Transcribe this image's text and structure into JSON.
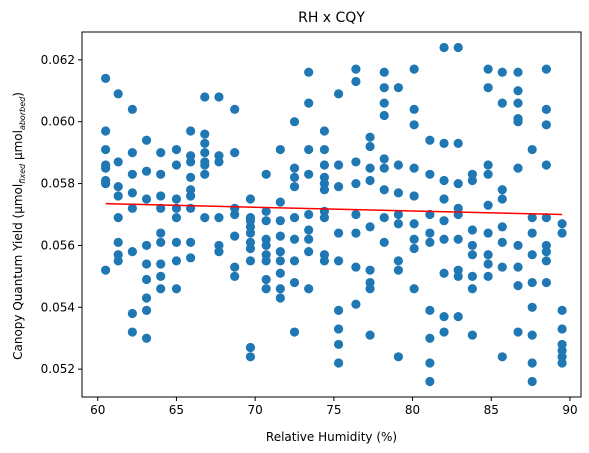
{
  "chart_data": {
    "type": "scatter",
    "title": "RH x CQY",
    "xlabel": "Relative Humidity (%)",
    "ylabel": {
      "main": "Canopy Quantum Yield (µmol",
      "sub1": "fixed",
      "mid": " µmol",
      "sub2": "aborbed",
      "end": ")"
    },
    "xlim": [
      59.0,
      90.7
    ],
    "ylim": [
      0.0511,
      0.0629
    ],
    "xticks": [
      60,
      65,
      70,
      75,
      80,
      85,
      90
    ],
    "xtick_labels": [
      "60",
      "65",
      "70",
      "75",
      "80",
      "85",
      "90"
    ],
    "yticks": [
      0.052,
      0.054,
      0.056,
      0.058,
      0.06,
      0.062
    ],
    "ytick_labels": [
      "0.052",
      "0.054",
      "0.056",
      "0.058",
      "0.060",
      "0.062"
    ],
    "grid": false,
    "legend": "none",
    "series": [
      {
        "marker_color": "#1f77b4",
        "points": [
          [
            60.5,
            0.0614
          ],
          [
            60.5,
            0.0597
          ],
          [
            60.5,
            0.0591
          ],
          [
            60.5,
            0.0586
          ],
          [
            60.5,
            0.0585
          ],
          [
            60.5,
            0.0581
          ],
          [
            60.5,
            0.058
          ],
          [
            60.5,
            0.0552
          ],
          [
            61.3,
            0.0609
          ],
          [
            61.3,
            0.0587
          ],
          [
            61.3,
            0.0579
          ],
          [
            61.3,
            0.0576
          ],
          [
            61.3,
            0.0569
          ],
          [
            61.3,
            0.0561
          ],
          [
            61.3,
            0.0557
          ],
          [
            61.3,
            0.0555
          ],
          [
            62.2,
            0.0604
          ],
          [
            62.2,
            0.059
          ],
          [
            62.2,
            0.0583
          ],
          [
            62.2,
            0.0577
          ],
          [
            62.2,
            0.0572
          ],
          [
            62.2,
            0.0558
          ],
          [
            62.2,
            0.0538
          ],
          [
            62.2,
            0.0532
          ],
          [
            63.1,
            0.0594
          ],
          [
            63.1,
            0.0584
          ],
          [
            63.1,
            0.0575
          ],
          [
            63.1,
            0.056
          ],
          [
            63.1,
            0.0554
          ],
          [
            63.1,
            0.0549
          ],
          [
            63.1,
            0.0543
          ],
          [
            63.1,
            0.0539
          ],
          [
            63.1,
            0.053
          ],
          [
            64.0,
            0.059
          ],
          [
            64.0,
            0.0583
          ],
          [
            64.0,
            0.0576
          ],
          [
            64.0,
            0.0572
          ],
          [
            64.0,
            0.0564
          ],
          [
            64.0,
            0.0561
          ],
          [
            64.0,
            0.0554
          ],
          [
            64.0,
            0.055
          ],
          [
            64.0,
            0.0546
          ],
          [
            65.0,
            0.0591
          ],
          [
            65.0,
            0.0586
          ],
          [
            65.0,
            0.0575
          ],
          [
            65.0,
            0.0572
          ],
          [
            65.0,
            0.0569
          ],
          [
            65.0,
            0.0561
          ],
          [
            65.0,
            0.0555
          ],
          [
            65.0,
            0.0546
          ],
          [
            65.9,
            0.0597
          ],
          [
            65.9,
            0.0589
          ],
          [
            65.9,
            0.0587
          ],
          [
            65.9,
            0.0582
          ],
          [
            65.9,
            0.0578
          ],
          [
            65.9,
            0.0576
          ],
          [
            65.9,
            0.0572
          ],
          [
            65.9,
            0.0561
          ],
          [
            65.9,
            0.0556
          ],
          [
            66.8,
            0.0608
          ],
          [
            66.8,
            0.0596
          ],
          [
            66.8,
            0.0593
          ],
          [
            66.8,
            0.059
          ],
          [
            66.8,
            0.0587
          ],
          [
            66.8,
            0.0586
          ],
          [
            66.8,
            0.0583
          ],
          [
            66.8,
            0.0569
          ],
          [
            67.7,
            0.0608
          ],
          [
            67.7,
            0.0589
          ],
          [
            67.7,
            0.0587
          ],
          [
            67.7,
            0.0569
          ],
          [
            67.7,
            0.056
          ],
          [
            67.7,
            0.0558
          ],
          [
            68.7,
            0.0604
          ],
          [
            68.7,
            0.059
          ],
          [
            68.7,
            0.0572
          ],
          [
            68.7,
            0.057
          ],
          [
            68.7,
            0.0563
          ],
          [
            68.7,
            0.0553
          ],
          [
            68.7,
            0.055
          ],
          [
            69.7,
            0.0575
          ],
          [
            69.7,
            0.0569
          ],
          [
            69.7,
            0.0568
          ],
          [
            69.7,
            0.0566
          ],
          [
            69.7,
            0.0564
          ],
          [
            69.7,
            0.0561
          ],
          [
            69.7,
            0.0559
          ],
          [
            69.7,
            0.0555
          ],
          [
            69.7,
            0.0527
          ],
          [
            69.7,
            0.0524
          ],
          [
            70.7,
            0.0583
          ],
          [
            70.7,
            0.0571
          ],
          [
            70.7,
            0.0568
          ],
          [
            70.7,
            0.0562
          ],
          [
            70.7,
            0.056
          ],
          [
            70.7,
            0.0557
          ],
          [
            70.7,
            0.0555
          ],
          [
            70.7,
            0.0549
          ],
          [
            70.7,
            0.0546
          ],
          [
            71.6,
            0.0591
          ],
          [
            71.6,
            0.0574
          ],
          [
            71.6,
            0.0568
          ],
          [
            71.6,
            0.0563
          ],
          [
            71.6,
            0.0558
          ],
          [
            71.6,
            0.0555
          ],
          [
            71.6,
            0.0551
          ],
          [
            71.6,
            0.0546
          ],
          [
            71.6,
            0.0543
          ],
          [
            72.5,
            0.06
          ],
          [
            72.5,
            0.0585
          ],
          [
            72.5,
            0.0582
          ],
          [
            72.5,
            0.0579
          ],
          [
            72.5,
            0.0569
          ],
          [
            72.5,
            0.0562
          ],
          [
            72.5,
            0.0555
          ],
          [
            72.5,
            0.0548
          ],
          [
            72.5,
            0.0532
          ],
          [
            73.4,
            0.0616
          ],
          [
            73.4,
            0.0606
          ],
          [
            73.4,
            0.0591
          ],
          [
            73.4,
            0.0583
          ],
          [
            73.4,
            0.057
          ],
          [
            73.4,
            0.0565
          ],
          [
            73.4,
            0.0562
          ],
          [
            73.4,
            0.0558
          ],
          [
            73.4,
            0.0546
          ],
          [
            74.4,
            0.0597
          ],
          [
            74.4,
            0.0591
          ],
          [
            74.4,
            0.0586
          ],
          [
            74.4,
            0.0582
          ],
          [
            74.4,
            0.058
          ],
          [
            74.4,
            0.0578
          ],
          [
            74.4,
            0.0571
          ],
          [
            74.4,
            0.0569
          ],
          [
            74.4,
            0.0557
          ],
          [
            74.4,
            0.0555
          ],
          [
            75.3,
            0.0609
          ],
          [
            75.3,
            0.0586
          ],
          [
            75.3,
            0.0579
          ],
          [
            75.3,
            0.0564
          ],
          [
            75.3,
            0.0555
          ],
          [
            75.3,
            0.0539
          ],
          [
            75.3,
            0.0533
          ],
          [
            75.3,
            0.0528
          ],
          [
            75.3,
            0.0522
          ],
          [
            76.4,
            0.0617
          ],
          [
            76.4,
            0.0613
          ],
          [
            76.4,
            0.0587
          ],
          [
            76.4,
            0.058
          ],
          [
            76.4,
            0.057
          ],
          [
            76.4,
            0.0564
          ],
          [
            76.4,
            0.0553
          ],
          [
            76.4,
            0.0541
          ],
          [
            77.3,
            0.0595
          ],
          [
            77.3,
            0.0592
          ],
          [
            77.3,
            0.0585
          ],
          [
            77.3,
            0.0581
          ],
          [
            77.3,
            0.0566
          ],
          [
            77.3,
            0.0552
          ],
          [
            77.3,
            0.0548
          ],
          [
            77.3,
            0.0546
          ],
          [
            77.3,
            0.0531
          ],
          [
            78.2,
            0.0616
          ],
          [
            78.2,
            0.0611
          ],
          [
            78.2,
            0.0606
          ],
          [
            78.2,
            0.0602
          ],
          [
            78.2,
            0.0588
          ],
          [
            78.2,
            0.0585
          ],
          [
            78.2,
            0.0578
          ],
          [
            78.2,
            0.0569
          ],
          [
            78.2,
            0.0561
          ],
          [
            79.1,
            0.0611
          ],
          [
            79.1,
            0.0586
          ],
          [
            79.1,
            0.0577
          ],
          [
            79.1,
            0.057
          ],
          [
            79.1,
            0.0567
          ],
          [
            79.1,
            0.0555
          ],
          [
            79.1,
            0.0552
          ],
          [
            79.1,
            0.0524
          ],
          [
            80.1,
            0.0617
          ],
          [
            80.1,
            0.0604
          ],
          [
            80.1,
            0.0599
          ],
          [
            80.1,
            0.0585
          ],
          [
            80.1,
            0.0576
          ],
          [
            80.1,
            0.0567
          ],
          [
            80.1,
            0.0562
          ],
          [
            80.1,
            0.0559
          ],
          [
            80.1,
            0.0546
          ],
          [
            81.1,
            0.0594
          ],
          [
            81.1,
            0.0583
          ],
          [
            81.1,
            0.057
          ],
          [
            81.1,
            0.0564
          ],
          [
            81.1,
            0.0561
          ],
          [
            81.1,
            0.0539
          ],
          [
            81.1,
            0.053
          ],
          [
            81.1,
            0.0522
          ],
          [
            81.1,
            0.0516
          ],
          [
            82.0,
            0.0624
          ],
          [
            82.0,
            0.0593
          ],
          [
            82.0,
            0.0581
          ],
          [
            82.0,
            0.0575
          ],
          [
            82.0,
            0.0568
          ],
          [
            82.0,
            0.0562
          ],
          [
            82.0,
            0.0551
          ],
          [
            82.0,
            0.0537
          ],
          [
            82.0,
            0.0532
          ],
          [
            82.9,
            0.0624
          ],
          [
            82.9,
            0.0593
          ],
          [
            82.9,
            0.058
          ],
          [
            82.9,
            0.0572
          ],
          [
            82.9,
            0.057
          ],
          [
            82.9,
            0.0562
          ],
          [
            82.9,
            0.0552
          ],
          [
            82.9,
            0.055
          ],
          [
            82.9,
            0.0537
          ],
          [
            83.8,
            0.0583
          ],
          [
            83.8,
            0.0581
          ],
          [
            83.8,
            0.0565
          ],
          [
            83.8,
            0.056
          ],
          [
            83.8,
            0.0557
          ],
          [
            83.8,
            0.055
          ],
          [
            83.8,
            0.0546
          ],
          [
            83.8,
            0.0531
          ],
          [
            84.8,
            0.0617
          ],
          [
            84.8,
            0.0611
          ],
          [
            84.8,
            0.0586
          ],
          [
            84.8,
            0.0583
          ],
          [
            84.8,
            0.0573
          ],
          [
            84.8,
            0.0564
          ],
          [
            84.8,
            0.0557
          ],
          [
            84.8,
            0.0554
          ],
          [
            84.8,
            0.055
          ],
          [
            85.7,
            0.0616
          ],
          [
            85.7,
            0.0606
          ],
          [
            85.7,
            0.0578
          ],
          [
            85.7,
            0.0575
          ],
          [
            85.7,
            0.0566
          ],
          [
            85.7,
            0.0561
          ],
          [
            85.7,
            0.0553
          ],
          [
            85.7,
            0.0524
          ],
          [
            86.7,
            0.0616
          ],
          [
            86.7,
            0.061
          ],
          [
            86.7,
            0.0606
          ],
          [
            86.7,
            0.0601
          ],
          [
            86.7,
            0.06
          ],
          [
            86.7,
            0.0585
          ],
          [
            86.7,
            0.056
          ],
          [
            86.7,
            0.0553
          ],
          [
            86.7,
            0.0547
          ],
          [
            86.7,
            0.0532
          ],
          [
            87.6,
            0.0591
          ],
          [
            87.6,
            0.0569
          ],
          [
            87.6,
            0.0564
          ],
          [
            87.6,
            0.0557
          ],
          [
            87.6,
            0.0548
          ],
          [
            87.6,
            0.054
          ],
          [
            87.6,
            0.0531
          ],
          [
            87.6,
            0.0522
          ],
          [
            87.6,
            0.0516
          ],
          [
            88.5,
            0.0617
          ],
          [
            88.5,
            0.0604
          ],
          [
            88.5,
            0.0599
          ],
          [
            88.5,
            0.0586
          ],
          [
            88.5,
            0.0569
          ],
          [
            88.5,
            0.056
          ],
          [
            88.5,
            0.0558
          ],
          [
            88.5,
            0.0555
          ],
          [
            88.5,
            0.0548
          ],
          [
            89.5,
            0.0567
          ],
          [
            89.5,
            0.0564
          ],
          [
            89.5,
            0.0539
          ],
          [
            89.5,
            0.0533
          ],
          [
            89.5,
            0.0528
          ],
          [
            89.5,
            0.0526
          ],
          [
            89.5,
            0.0524
          ],
          [
            89.5,
            0.0522
          ]
        ]
      }
    ],
    "trendline": {
      "color": "#ff0000",
      "x": [
        60.5,
        89.5
      ],
      "y": [
        0.05735,
        0.057
      ]
    }
  }
}
